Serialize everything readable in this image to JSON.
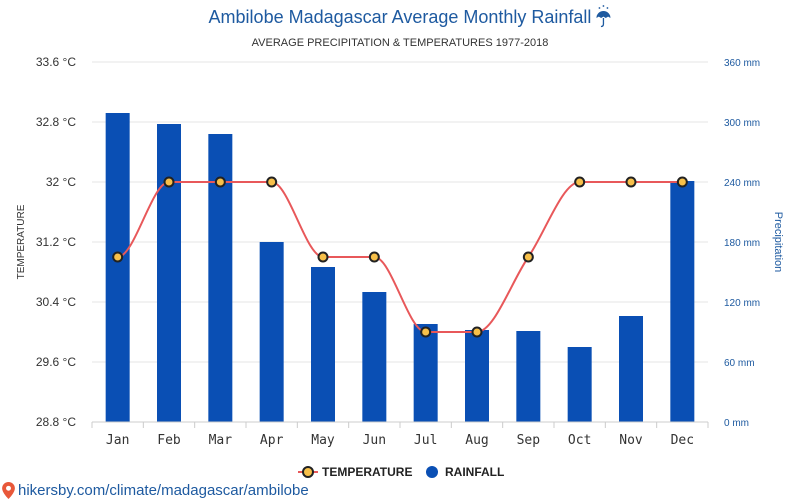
{
  "chart_data": {
    "type": "bar",
    "title": "Ambilobe Madagascar Average Monthly Rainfall",
    "title_icon": "umbrella-rain-icon",
    "subtitle": "AVERAGE PRECIPITATION & TEMPERATURES 1977-2018",
    "categories": [
      "Jan",
      "Feb",
      "Mar",
      "Apr",
      "May",
      "Jun",
      "Jul",
      "Aug",
      "Sep",
      "Oct",
      "Nov",
      "Dec"
    ],
    "series": [
      {
        "name": "RAINFALL",
        "type": "bar",
        "axis": "right",
        "color": "#0a4fb4",
        "values": [
          309,
          298,
          288,
          180,
          155,
          130,
          98,
          92,
          91,
          75,
          106,
          241
        ]
      },
      {
        "name": "TEMPERATURE",
        "type": "line",
        "axis": "left",
        "color": "#e8585a",
        "marker_color": "#f7c04a",
        "values": [
          31.0,
          32.0,
          32.0,
          32.0,
          31.0,
          31.0,
          30.0,
          30.0,
          31.0,
          32.0,
          32.0,
          32.0
        ]
      }
    ],
    "y_left": {
      "label": "TEMPERATURE",
      "unit": "°C",
      "ylim": [
        28.8,
        33.6
      ],
      "ticks": [
        "28.8 °C",
        "29.6 °C",
        "30.4 °C",
        "31.2 °C",
        "32 °C",
        "32.8 °C",
        "33.6 °C"
      ]
    },
    "y_right": {
      "label": "Precipitation",
      "unit": "mm",
      "ylim": [
        0,
        360
      ],
      "ticks": [
        "0 mm",
        "60 mm",
        "120 mm",
        "180 mm",
        "240 mm",
        "300 mm",
        "360 mm"
      ]
    },
    "grid": true,
    "legend_position": "bottom-center",
    "legend": [
      "TEMPERATURE",
      "RAINFALL"
    ]
  },
  "footer": {
    "source_text": "hikersby.com/climate/madagascar/ambilobe",
    "pin_icon": "location-pin-icon",
    "pin_color": "#e8583a"
  }
}
